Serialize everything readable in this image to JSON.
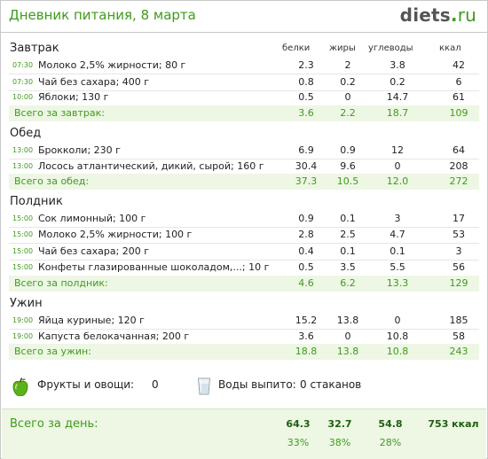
{
  "title": "Дневник питания, 8 марта",
  "logo": {
    "name": "diets",
    "dot": ".",
    "tld": "ru"
  },
  "columns": {
    "protein": "белки",
    "fat": "жиры",
    "carbs": "углеводы",
    "kcal": "ккал"
  },
  "meals": [
    {
      "name": "Завтрак",
      "items": [
        {
          "time": "07:30",
          "name": "Молоко 2,5% жирности; 80 г",
          "protein": "2.3",
          "fat": "2",
          "carbs": "3.8",
          "kcal": "42"
        },
        {
          "time": "07:30",
          "name": "Чай без сахара; 400 г",
          "protein": "0.8",
          "fat": "0.2",
          "carbs": "0.2",
          "kcal": "6"
        },
        {
          "time": "10:00",
          "name": "Яблоки; 130 г",
          "protein": "0.5",
          "fat": "0",
          "carbs": "14.7",
          "kcal": "61"
        }
      ],
      "total": {
        "label": "Всего за завтрак:",
        "protein": "3.6",
        "fat": "2.2",
        "carbs": "18.7",
        "kcal": "109"
      }
    },
    {
      "name": "Обед",
      "items": [
        {
          "time": "13:00",
          "name": "Брокколи; 230 г",
          "protein": "6.9",
          "fat": "0.9",
          "carbs": "12",
          "kcal": "64"
        },
        {
          "time": "13:00",
          "name": "Лосось атлантический, дикий, сырой; 160 г",
          "protein": "30.4",
          "fat": "9.6",
          "carbs": "0",
          "kcal": "208"
        }
      ],
      "total": {
        "label": "Всего за обед:",
        "protein": "37.3",
        "fat": "10.5",
        "carbs": "12.0",
        "kcal": "272"
      }
    },
    {
      "name": "Полдник",
      "items": [
        {
          "time": "15:00",
          "name": "Сок лимонный; 100 г",
          "protein": "0.9",
          "fat": "0.1",
          "carbs": "3",
          "kcal": "17"
        },
        {
          "time": "15:00",
          "name": "Молоко 2,5% жирности; 100 г",
          "protein": "2.8",
          "fat": "2.5",
          "carbs": "4.7",
          "kcal": "53"
        },
        {
          "time": "15:00",
          "name": "Чай без сахара; 200 г",
          "protein": "0.4",
          "fat": "0.1",
          "carbs": "0.1",
          "kcal": "3"
        },
        {
          "time": "15:00",
          "name": "Конфеты глазированные шоколадом,...; 10 г",
          "protein": "0.5",
          "fat": "3.5",
          "carbs": "5.5",
          "kcal": "56"
        }
      ],
      "total": {
        "label": "Всего за полдник:",
        "protein": "4.6",
        "fat": "6.2",
        "carbs": "13.3",
        "kcal": "129"
      }
    },
    {
      "name": "Ужин",
      "items": [
        {
          "time": "19:00",
          "name": "Яйца куриные; 120 г",
          "protein": "15.2",
          "fat": "13.8",
          "carbs": "0",
          "kcal": "185"
        },
        {
          "time": "19:00",
          "name": "Капуста белокачанная; 200 г",
          "protein": "3.6",
          "fat": "0",
          "carbs": "10.8",
          "kcal": "58"
        }
      ],
      "total": {
        "label": "Всего за ужин:",
        "protein": "18.8",
        "fat": "13.8",
        "carbs": "10.8",
        "kcal": "243"
      }
    }
  ],
  "extras": {
    "fruits_label": "Фрукты и овощи:",
    "fruits_value": "0",
    "water_label": "Воды выпито:",
    "water_value": "0 стаканов",
    "fruit_icon": "green-apple-icon",
    "water_icon": "glass-icon"
  },
  "day_total": {
    "label": "Всего за день:",
    "protein": "64.3",
    "fat": "32.7",
    "carbs": "54.8",
    "kcal": "753 ккал",
    "protein_pct": "33%",
    "fat_pct": "38%",
    "carbs_pct": "28%"
  },
  "colors": {
    "accent": "#3f9b1c",
    "total_bg": "#edf7e4"
  }
}
